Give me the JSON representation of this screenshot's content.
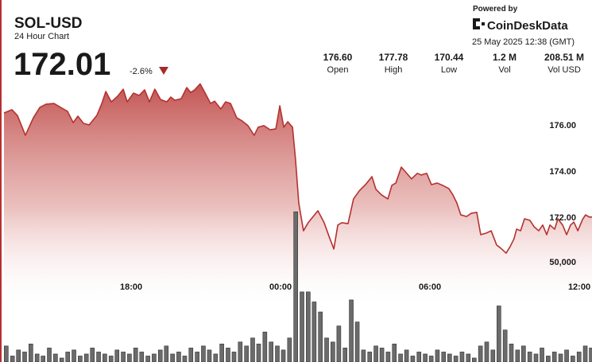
{
  "chart_data": {
    "type": "line",
    "title": "SOL-USD",
    "subtitle": "24 Hour Chart",
    "header": {
      "last_price": "172.01",
      "change": "-2.6%",
      "powered_by": "Powered by",
      "brand": "CoinDeskData",
      "timestamp": "25 May 2025 12:38 (GMT)",
      "stats": [
        {
          "value": "176.60",
          "label": "Open"
        },
        {
          "value": "177.78",
          "label": "High"
        },
        {
          "value": "170.44",
          "label": "Low"
        },
        {
          "value": "1.2 M",
          "label": "Vol"
        },
        {
          "value": "208.51 M",
          "label": "Vol USD"
        }
      ]
    },
    "xlim": [
      -11.27,
      12.51
    ],
    "xticks": [
      {
        "value": -6,
        "label": "18:00"
      },
      {
        "value": 0,
        "label": "00:00"
      },
      {
        "value": 6,
        "label": "06:00"
      },
      {
        "value": 12,
        "label": "12:00"
      }
    ],
    "ylim": [
      165.72,
      178.14
    ],
    "yticks": [
      {
        "value": 172,
        "label": "172.00"
      },
      {
        "value": 174,
        "label": "174.00"
      },
      {
        "value": 176,
        "label": "176.00"
      }
    ],
    "y2lim": [
      0,
      143000
    ],
    "y2ticks": [
      {
        "value": 50000,
        "label": "50,000"
      }
    ],
    "grid": false,
    "series": [
      {
        "type": "line",
        "color": "#b5312f",
        "x": [
          -11.11,
          -10.79,
          -10.57,
          -10.25,
          -9.93,
          -9.67,
          -9.42,
          -9.1,
          -8.88,
          -8.56,
          -8.33,
          -8.14,
          -7.92,
          -7.69,
          -7.38,
          -7.18,
          -7.02,
          -6.8,
          -6.55,
          -6.32,
          -6.16,
          -5.91,
          -5.68,
          -5.46,
          -5.27,
          -5.05,
          -4.82,
          -4.57,
          -4.41,
          -4.25,
          -3.99,
          -3.77,
          -3.61,
          -3.45,
          -3.23,
          -3.03,
          -2.81,
          -2.65,
          -2.4,
          -2.21,
          -2.01,
          -1.76,
          -1.54,
          -1.31,
          -1.06,
          -0.9,
          -0.67,
          -0.42,
          -0.19,
          -0.03,
          0.13,
          0.29,
          0.48,
          0.6,
          0.73,
          0.92,
          1.11,
          1.5,
          1.75,
          1.98,
          2.14,
          2.3,
          2.46,
          2.71,
          2.93,
          3.16,
          3.41,
          3.67,
          3.83,
          4.05,
          4.31,
          4.47,
          4.63,
          4.85,
          5.07,
          5.26,
          5.49,
          5.65,
          5.87,
          6.06,
          6.29,
          6.51,
          6.76,
          6.92,
          7.08,
          7.24,
          7.47,
          7.66,
          7.88,
          8.04,
          8.26,
          8.46,
          8.68,
          8.84,
          9.06,
          9.22,
          9.38,
          9.48,
          9.64,
          9.8,
          10.02,
          10.18,
          10.37,
          10.53,
          10.69,
          10.82,
          11.01,
          11.14,
          11.33,
          11.49,
          11.65,
          11.78,
          11.94,
          12.13,
          12.25,
          12.41,
          12.51
        ],
        "values": [
          176.52,
          176.66,
          176.41,
          175.55,
          176.31,
          176.76,
          176.9,
          176.93,
          176.79,
          176.59,
          176.1,
          176.38,
          176.07,
          176.0,
          176.41,
          176.93,
          177.45,
          177.0,
          177.24,
          177.55,
          177.0,
          177.38,
          177.28,
          177.52,
          177.0,
          177.55,
          177.1,
          177.0,
          177.21,
          177.07,
          177.14,
          177.62,
          177.41,
          177.52,
          177.78,
          177.38,
          176.93,
          177.03,
          176.69,
          177.0,
          176.93,
          176.31,
          176.17,
          175.97,
          175.55,
          175.9,
          175.97,
          175.79,
          175.83,
          176.83,
          175.9,
          176.14,
          175.9,
          174.52,
          172.62,
          171.41,
          171.76,
          172.28,
          171.76,
          171.07,
          170.62,
          171.66,
          171.76,
          171.72,
          172.79,
          173.14,
          173.41,
          173.76,
          173.21,
          172.97,
          172.79,
          173.38,
          173.48,
          174.17,
          173.9,
          173.66,
          173.9,
          173.83,
          173.9,
          173.41,
          173.48,
          173.38,
          173.24,
          172.97,
          172.62,
          172.1,
          172.03,
          172.17,
          172.21,
          171.24,
          171.31,
          171.41,
          170.79,
          170.66,
          170.44,
          170.72,
          171.07,
          171.48,
          171.41,
          171.93,
          171.86,
          171.59,
          171.41,
          171.66,
          171.24,
          171.66,
          171.48,
          171.93,
          171.66,
          171.24,
          171.66,
          171.79,
          171.41,
          171.9,
          172.1,
          172.0,
          172.01
        ]
      },
      {
        "type": "bar",
        "axis": "y2",
        "color": "#6b6b6b",
        "x": [
          -11.02,
          -10.77,
          -10.53,
          -10.28,
          -10.03,
          -9.78,
          -9.54,
          -9.29,
          -9.04,
          -8.79,
          -8.55,
          -8.3,
          -8.05,
          -7.8,
          -7.56,
          -7.31,
          -7.06,
          -6.81,
          -6.57,
          -6.32,
          -6.07,
          -5.82,
          -5.58,
          -5.33,
          -5.08,
          -4.83,
          -4.59,
          -4.34,
          -4.09,
          -3.85,
          -3.6,
          -3.35,
          -3.1,
          -2.86,
          -2.61,
          -2.36,
          -2.11,
          -1.87,
          -1.62,
          -1.37,
          -1.12,
          -0.88,
          -0.63,
          -0.38,
          -0.13,
          0.11,
          0.36,
          0.61,
          0.86,
          1.11,
          1.35,
          1.6,
          1.85,
          2.1,
          2.34,
          2.59,
          2.84,
          3.08,
          3.33,
          3.58,
          3.83,
          4.07,
          4.32,
          4.57,
          4.82,
          5.06,
          5.31,
          5.56,
          5.81,
          6.05,
          6.3,
          6.55,
          6.79,
          7.04,
          7.29,
          7.54,
          7.78,
          8.03,
          8.28,
          8.53,
          8.77,
          9.02,
          9.27,
          9.52,
          9.76,
          10.01,
          10.26,
          10.5,
          10.75,
          11.0,
          11.25,
          11.49,
          11.74,
          11.99,
          12.24,
          12.48
        ],
        "values": [
          8000,
          3000,
          6000,
          5000,
          9000,
          4000,
          3000,
          7000,
          4000,
          2000,
          5000,
          6000,
          3000,
          4000,
          7000,
          5000,
          4000,
          3000,
          6000,
          5000,
          4000,
          7000,
          5000,
          3000,
          4000,
          6000,
          8000,
          4000,
          5000,
          3000,
          7000,
          5000,
          8000,
          6000,
          4000,
          9000,
          7000,
          5000,
          10000,
          8000,
          12000,
          9000,
          15000,
          10000,
          8000,
          6000,
          12000,
          75000,
          35000,
          35000,
          30000,
          25000,
          12000,
          10000,
          18000,
          7000,
          31000,
          20000,
          6000,
          5000,
          8000,
          7000,
          5000,
          9000,
          4000,
          6000,
          3000,
          5000,
          4000,
          3000,
          6000,
          5000,
          4000,
          3000,
          5000,
          4000,
          2000,
          8000,
          10000,
          6000,
          28000,
          16000,
          9000,
          6000,
          8000,
          5000,
          4000,
          7000,
          3000,
          5000,
          4000,
          6000,
          3000,
          5000,
          8000,
          7000
        ]
      }
    ]
  }
}
